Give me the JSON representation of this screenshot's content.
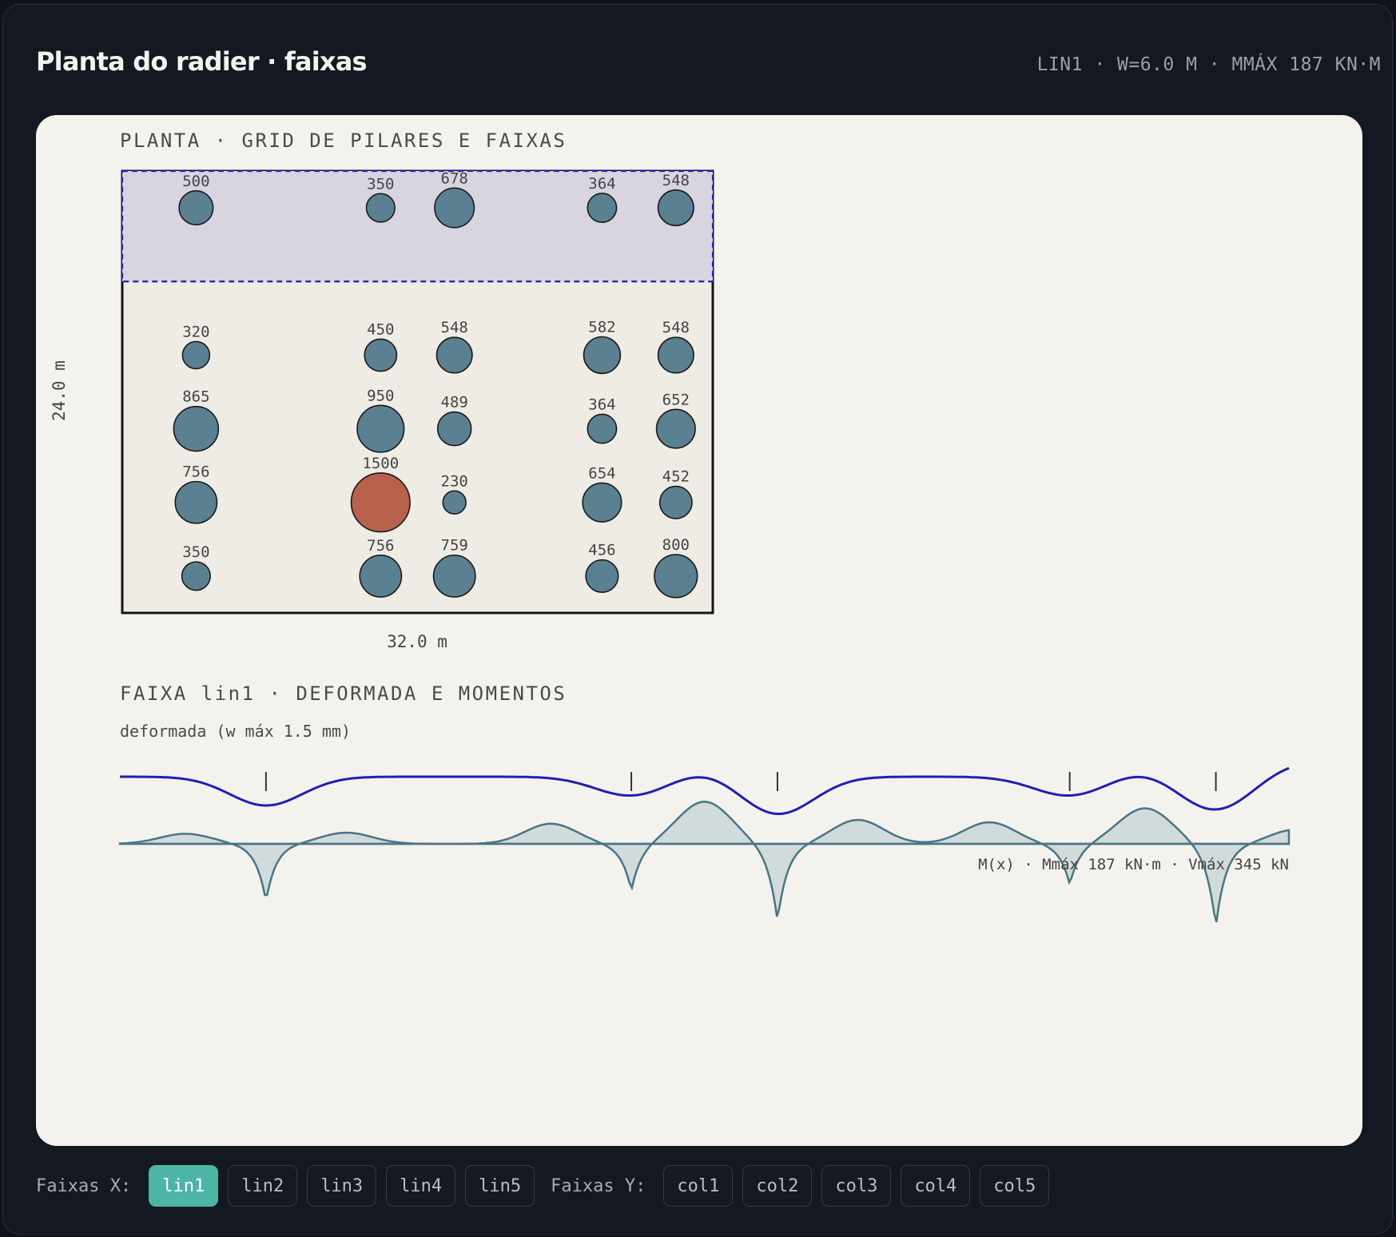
{
  "header": {
    "title": "Planta do radier · faixas",
    "info": "LIN1 · W=6.0 M · MMÁX 187 KN·M"
  },
  "plan": {
    "section_title": "PLANTA · GRID DE PILARES E FAIXAS",
    "width_label": "32.0 m",
    "height_label": "24.0 m",
    "width_m": 32.0,
    "height_m": 24.0,
    "column_x_m": [
      4,
      14,
      18,
      26,
      30
    ],
    "row_y_m": [
      2,
      10,
      14,
      18,
      22
    ],
    "active_strip": {
      "name": "lin1",
      "y_from_m": 0,
      "y_to_m": 6
    },
    "loads": [
      [
        500,
        350,
        678,
        364,
        548
      ],
      [
        320,
        450,
        548,
        582,
        548
      ],
      [
        865,
        950,
        489,
        364,
        652
      ],
      [
        756,
        1500,
        230,
        654,
        452
      ],
      [
        350,
        756,
        759,
        456,
        800
      ]
    ],
    "highlight": {
      "row": 3,
      "col": 1
    },
    "colors": {
      "column": "#5a8091",
      "column_highlight": "#b8614c",
      "strip_fill": "#d8d5e1",
      "strip_border": "#1f1fb4",
      "slab": "#efece5",
      "slab_border": "#151515"
    }
  },
  "strip": {
    "section_title": "FAIXA lin1 · DEFORMADA E MOMENTOS",
    "deformed_label": "deformada (w máx 1.5 mm)",
    "moment_caption": "M(x) · Mmáx 187 kN·m · Vmáx 345 kN",
    "w_max_mm": 1.5,
    "m_max_kNm": 187,
    "v_max_kN": 345,
    "support_x_m": [
      4,
      14,
      18,
      26,
      30
    ],
    "colors": {
      "deformed": "#1f1fb4",
      "moment_stroke": "#4a7585",
      "moment_fill": "#cdd8d8"
    }
  },
  "toolbar": {
    "x_label": "Faixas X:",
    "y_label": "Faixas Y:",
    "x_strips": [
      "lin1",
      "lin2",
      "lin3",
      "lin4",
      "lin5"
    ],
    "y_strips": [
      "col1",
      "col2",
      "col3",
      "col4",
      "col5"
    ],
    "active": "lin1"
  }
}
